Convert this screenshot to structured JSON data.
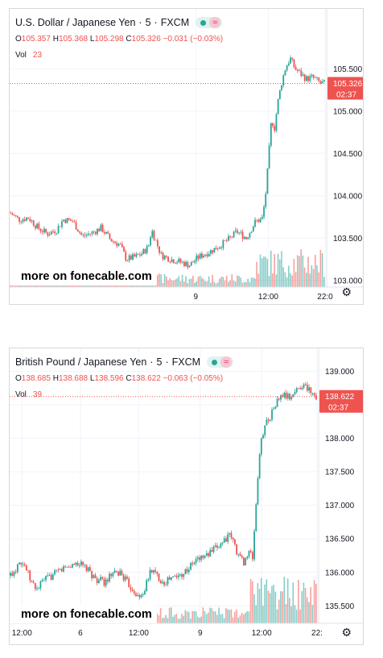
{
  "chart_data": [
    {
      "type": "candlestick",
      "symbol": "U.S. Dollar / Japanese Yen",
      "interval": "5",
      "exchange": "FXCM",
      "ohlc": {
        "open": "105.357",
        "high": "105.368",
        "low": "105.298",
        "close": "105.326",
        "change": "−0.031 (−0.03%)"
      },
      "volume_label": "Vol",
      "volume_value": "23",
      "y_ticks": [
        "105.500",
        "105.000",
        "104.500",
        "104.000",
        "103.500",
        "103.000"
      ],
      "y_tick_values": [
        105.5,
        105.0,
        104.5,
        104.0,
        103.5,
        103.0
      ],
      "ylim": [
        102.95,
        105.75
      ],
      "x_ticks": [
        "9",
        "12:00",
        "22:0"
      ],
      "x_tick_positions": [
        0.59,
        0.82,
        1.0
      ],
      "last_price": "105.326",
      "last_value": 105.326,
      "countdown": "02:37",
      "path": [
        [
          0.0,
          103.8
        ],
        [
          0.03,
          103.72
        ],
        [
          0.06,
          103.74
        ],
        [
          0.09,
          103.62
        ],
        [
          0.12,
          103.55
        ],
        [
          0.15,
          103.6
        ],
        [
          0.17,
          103.72
        ],
        [
          0.2,
          103.7
        ],
        [
          0.23,
          103.52
        ],
        [
          0.26,
          103.56
        ],
        [
          0.29,
          103.62
        ],
        [
          0.32,
          103.48
        ],
        [
          0.35,
          103.42
        ],
        [
          0.37,
          103.25
        ],
        [
          0.4,
          103.28
        ],
        [
          0.42,
          103.32
        ],
        [
          0.44,
          103.4
        ],
        [
          0.45,
          103.6
        ],
        [
          0.46,
          103.5
        ],
        [
          0.48,
          103.3
        ],
        [
          0.51,
          103.25
        ],
        [
          0.54,
          103.22
        ],
        [
          0.57,
          103.18
        ],
        [
          0.6,
          103.28
        ],
        [
          0.64,
          103.35
        ],
        [
          0.67,
          103.42
        ],
        [
          0.7,
          103.5
        ],
        [
          0.72,
          103.58
        ],
        [
          0.75,
          103.5
        ],
        [
          0.78,
          103.7
        ],
        [
          0.8,
          103.72
        ],
        [
          0.81,
          103.95
        ],
        [
          0.82,
          104.4
        ],
        [
          0.83,
          104.9
        ],
        [
          0.84,
          104.8
        ],
        [
          0.85,
          105.1
        ],
        [
          0.86,
          105.3
        ],
        [
          0.875,
          105.52
        ],
        [
          0.89,
          105.62
        ],
        [
          0.905,
          105.5
        ],
        [
          0.92,
          105.45
        ],
        [
          0.94,
          105.38
        ],
        [
          0.96,
          105.4
        ],
        [
          0.985,
          105.33
        ],
        [
          1.0,
          105.326
        ]
      ],
      "seed": 7
    },
    {
      "type": "candlestick",
      "symbol": "British Pound / Japanese Yen",
      "interval": "5",
      "exchange": "FXCM",
      "ohlc": {
        "open": "138.685",
        "high": "138.688",
        "low": "138.596",
        "close": "138.622",
        "change": "−0.063 (−0.05%)"
      },
      "volume_label": "Vol",
      "volume_value": "39",
      "y_ticks": [
        "139.000",
        "138.500",
        "138.000",
        "137.500",
        "137.000",
        "136.500",
        "136.000",
        "135.500"
      ],
      "y_tick_values": [
        139.0,
        138.5,
        138.0,
        137.5,
        137.0,
        136.5,
        136.0,
        135.5
      ],
      "ylim": [
        135.3,
        139.1
      ],
      "x_ticks": [
        "12:00",
        "6",
        "12:00",
        "9",
        "12:00",
        "22:"
      ],
      "x_tick_positions": [
        0.04,
        0.23,
        0.42,
        0.62,
        0.82,
        1.0
      ],
      "last_price": "138.622",
      "last_value": 138.622,
      "countdown": "02:37",
      "path": [
        [
          0.0,
          135.95
        ],
        [
          0.02,
          136.05
        ],
        [
          0.03,
          136.2
        ],
        [
          0.05,
          136.1
        ],
        [
          0.07,
          135.85
        ],
        [
          0.09,
          135.75
        ],
        [
          0.11,
          135.88
        ],
        [
          0.14,
          135.95
        ],
        [
          0.17,
          136.05
        ],
        [
          0.2,
          136.1
        ],
        [
          0.22,
          136.15
        ],
        [
          0.25,
          136.05
        ],
        [
          0.28,
          135.9
        ],
        [
          0.31,
          135.85
        ],
        [
          0.33,
          135.95
        ],
        [
          0.36,
          136.0
        ],
        [
          0.39,
          135.8
        ],
        [
          0.41,
          135.7
        ],
        [
          0.42,
          135.6
        ],
        [
          0.44,
          135.75
        ],
        [
          0.46,
          136.05
        ],
        [
          0.48,
          135.95
        ],
        [
          0.5,
          135.85
        ],
        [
          0.52,
          135.9
        ],
        [
          0.55,
          135.95
        ],
        [
          0.58,
          136.05
        ],
        [
          0.61,
          136.2
        ],
        [
          0.64,
          136.25
        ],
        [
          0.67,
          136.35
        ],
        [
          0.7,
          136.5
        ],
        [
          0.72,
          136.55
        ],
        [
          0.74,
          136.3
        ],
        [
          0.76,
          136.15
        ],
        [
          0.78,
          136.3
        ],
        [
          0.79,
          136.2
        ],
        [
          0.8,
          136.9
        ],
        [
          0.81,
          137.6
        ],
        [
          0.82,
          138.0
        ],
        [
          0.83,
          138.2
        ],
        [
          0.85,
          138.35
        ],
        [
          0.87,
          138.55
        ],
        [
          0.89,
          138.65
        ],
        [
          0.91,
          138.6
        ],
        [
          0.93,
          138.7
        ],
        [
          0.95,
          138.8
        ],
        [
          0.97,
          138.75
        ],
        [
          1.0,
          138.622
        ]
      ],
      "seed": 13
    }
  ],
  "watermark": "more on fonecable.com"
}
